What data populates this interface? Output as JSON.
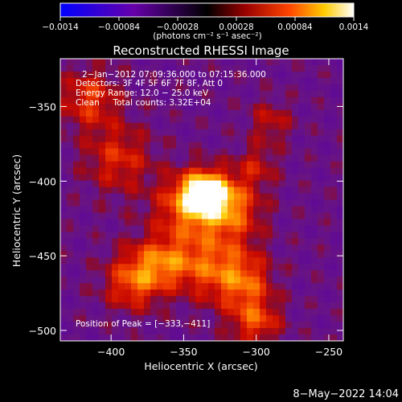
{
  "chart_data": {
    "type": "heatmap",
    "title": "Reconstructed RHESSI Image",
    "xlabel": "Heliocentric X (arcsec)",
    "ylabel": "Heliocentric Y (arcsec)",
    "xlim": [
      -435,
      -240
    ],
    "ylim": [
      -507,
      -318
    ],
    "xticks": [
      -400,
      -350,
      -300,
      -250
    ],
    "xtick_labels": [
      "−400",
      "−350",
      "−300",
      "−250"
    ],
    "yticks": [
      -350,
      -400,
      -450,
      -500
    ],
    "ytick_labels": [
      "−350",
      "−400",
      "−450",
      "−500"
    ],
    "colorbar": {
      "range": [
        -0.0014,
        0.0014
      ],
      "ticks": [
        -0.0014,
        -0.00084,
        -0.00028,
        0.00028,
        0.00084,
        0.0014
      ],
      "tick_labels": [
        "−0.0014",
        "−0.00084",
        "−0.00028",
        "0.00028",
        "0.00084",
        "0.0014"
      ],
      "units_label": "(photons cm⁻² s⁻¹ asec⁻²)"
    },
    "annotations": [
      "2−Jan−2012 07:09:36.000 to 07:15:36.000",
      "Detectors: 3F 4F 5F 6F 7F 8F, Att 0",
      "Energy Range: 12.0 − 25.0 keV",
      "Clean     Total counts: 3.32E+04"
    ],
    "peak_label": "Position of Peak = [−333,−411]",
    "peak": {
      "x": -333,
      "y": -411
    },
    "sources": [
      {
        "x": -335,
        "y": -408,
        "amp": 1.0,
        "sx": 12,
        "sy": 10
      },
      {
        "x": -345,
        "y": -420,
        "amp": 0.55,
        "sx": 18,
        "sy": 16
      },
      {
        "x": -315,
        "y": -420,
        "amp": 0.45,
        "sx": 14,
        "sy": 14
      },
      {
        "x": -365,
        "y": -455,
        "amp": 0.6,
        "sx": 18,
        "sy": 12
      },
      {
        "x": -385,
        "y": -470,
        "amp": 0.45,
        "sx": 14,
        "sy": 12
      },
      {
        "x": -325,
        "y": -460,
        "amp": 0.5,
        "sx": 16,
        "sy": 16
      },
      {
        "x": -305,
        "y": -470,
        "amp": 0.4,
        "sx": 12,
        "sy": 14
      },
      {
        "x": -415,
        "y": -345,
        "amp": 0.45,
        "sx": 14,
        "sy": 14
      },
      {
        "x": -395,
        "y": -385,
        "amp": 0.4,
        "sx": 16,
        "sy": 16
      },
      {
        "x": -300,
        "y": -495,
        "amp": 0.45,
        "sx": 12,
        "sy": 10
      },
      {
        "x": -290,
        "y": -360,
        "amp": 0.3,
        "sx": 10,
        "sy": 10
      },
      {
        "x": -300,
        "y": -390,
        "amp": 0.3,
        "sx": 10,
        "sy": 10
      }
    ]
  },
  "footer": {
    "date": "8−May−2022 14:04"
  }
}
